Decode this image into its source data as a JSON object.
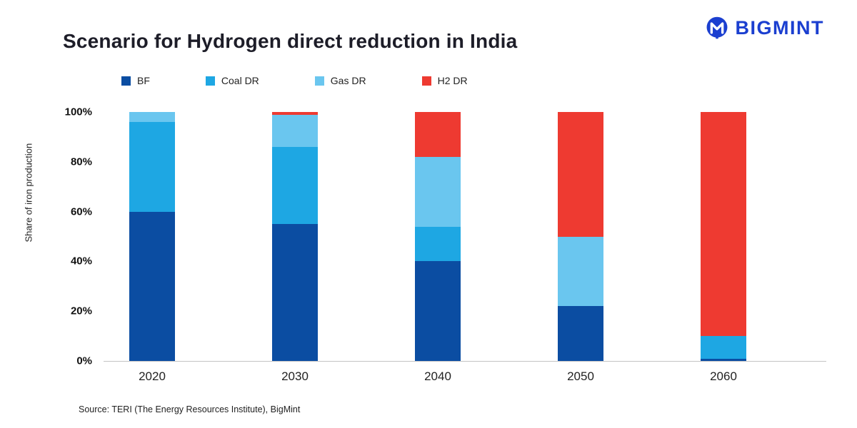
{
  "header": {
    "title": "Scenario for Hydrogen direct reduction in India",
    "brand": "BIGMINT"
  },
  "source_note": "Source: TERI (The Energy Resources Institute), BigMint",
  "colors": {
    "brand_blue": "#1b3fd0",
    "bf": "#0b4da2",
    "coal_dr": "#1ea7e3",
    "gas_dr": "#6ac6ef",
    "h2_dr": "#ee3a31",
    "axis_line": "#c4c4c4"
  },
  "chart_data": {
    "type": "bar",
    "stacked": true,
    "stacked_unit": "percent",
    "title": "Scenario for Hydrogen direct reduction in India",
    "xlabel": "",
    "ylabel": "Share of iron production",
    "ylim": [
      0,
      100
    ],
    "yticks": [
      0,
      20,
      40,
      60,
      80,
      100
    ],
    "ytick_labels": [
      "0%",
      "20%",
      "40%",
      "60%",
      "80%",
      "100%"
    ],
    "categories": [
      "2020",
      "2030",
      "2040",
      "2050",
      "2060"
    ],
    "series": [
      {
        "name": "BF",
        "color": "#0b4da2",
        "values": [
          60,
          55,
          40,
          22,
          1
        ]
      },
      {
        "name": "Coal DR",
        "color": "#1ea7e3",
        "values": [
          36,
          31,
          14,
          0,
          9
        ]
      },
      {
        "name": "Gas DR",
        "color": "#6ac6ef",
        "values": [
          4,
          13,
          28,
          28,
          0
        ]
      },
      {
        "name": "H2 DR",
        "color": "#ee3a31",
        "values": [
          0,
          1,
          18,
          50,
          90
        ]
      }
    ],
    "legend_position": "top",
    "grid": false
  }
}
